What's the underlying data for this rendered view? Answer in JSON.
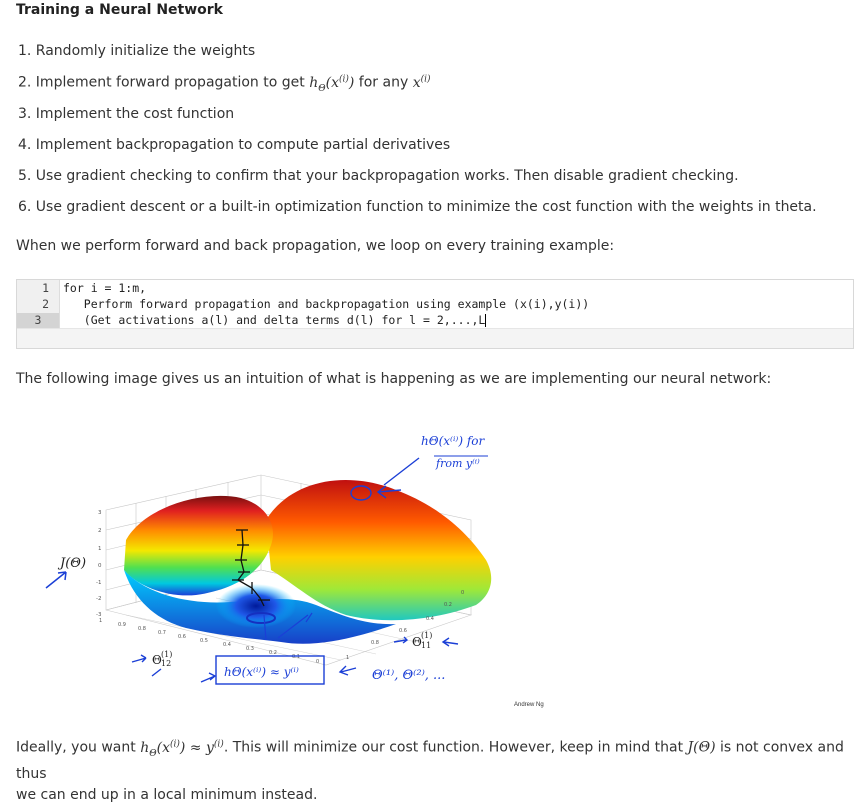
{
  "title": "Training a Neural Network",
  "steps": {
    "s1": "1. Randomly initialize the weights",
    "s2_pre": "2. Implement forward propagation to get ",
    "s2_mid": " for any ",
    "s3": "3. Implement the cost function",
    "s4": "4. Implement backpropagation to compute partial derivatives",
    "s5": "5. Use gradient checking to confirm that your backpropagation works. Then disable gradient checking.",
    "s6": "6. Use gradient descent or a built-in optimization function to minimize the cost function with the weights in theta."
  },
  "intro": "When we perform forward and back propagation, we loop on every training example:",
  "code": {
    "line_numbers": [
      "1",
      "2",
      "3"
    ],
    "lines": [
      "for i = 1:m,",
      "   Perform forward propagation and backpropagation using example (x(i),y(i))",
      "   (Get activations a(l) and delta terms d(l) for l = 2,...,L"
    ]
  },
  "image_intro": "The following image gives us an intuition of what is happening as we are implementing our neural network:",
  "figure": {
    "y_axis_label": "J(Θ)",
    "theta12": "Θ",
    "theta12_sup": "(1)",
    "theta12_sub": "12",
    "theta11": "Θ",
    "theta11_sup": "(1)",
    "theta11_sub": "11",
    "credit": "Andrew Ng",
    "hand_top_1": "hΘ(x⁽ⁱ⁾) for",
    "hand_top_2": "from y⁽ⁱ⁾",
    "hand_bottom": "hΘ(x⁽ⁱ⁾) ≈ y⁽ⁱ⁾",
    "hand_right": "Θ⁽¹⁾, Θ⁽²⁾, ...",
    "z_ticks": [
      "3",
      "2",
      "1",
      "0",
      "-1",
      "-2",
      "-3"
    ],
    "x_ticks": [
      "1",
      "0.9",
      "0.8",
      "0.7",
      "0.6",
      "0.5",
      "0.4",
      "0.3",
      "0.2",
      "0.1",
      "0"
    ],
    "y_ticks": [
      "1",
      "0.8",
      "0.6",
      "0.4",
      "0.2",
      "0"
    ]
  },
  "final": {
    "pre": "Ideally, you want ",
    "mid": ". This will minimize our cost function. However, keep in mind that ",
    "post": " is not convex and thus",
    "line2": "we can end up in a local minimum instead.",
    "j_theta": "J(Θ)"
  }
}
